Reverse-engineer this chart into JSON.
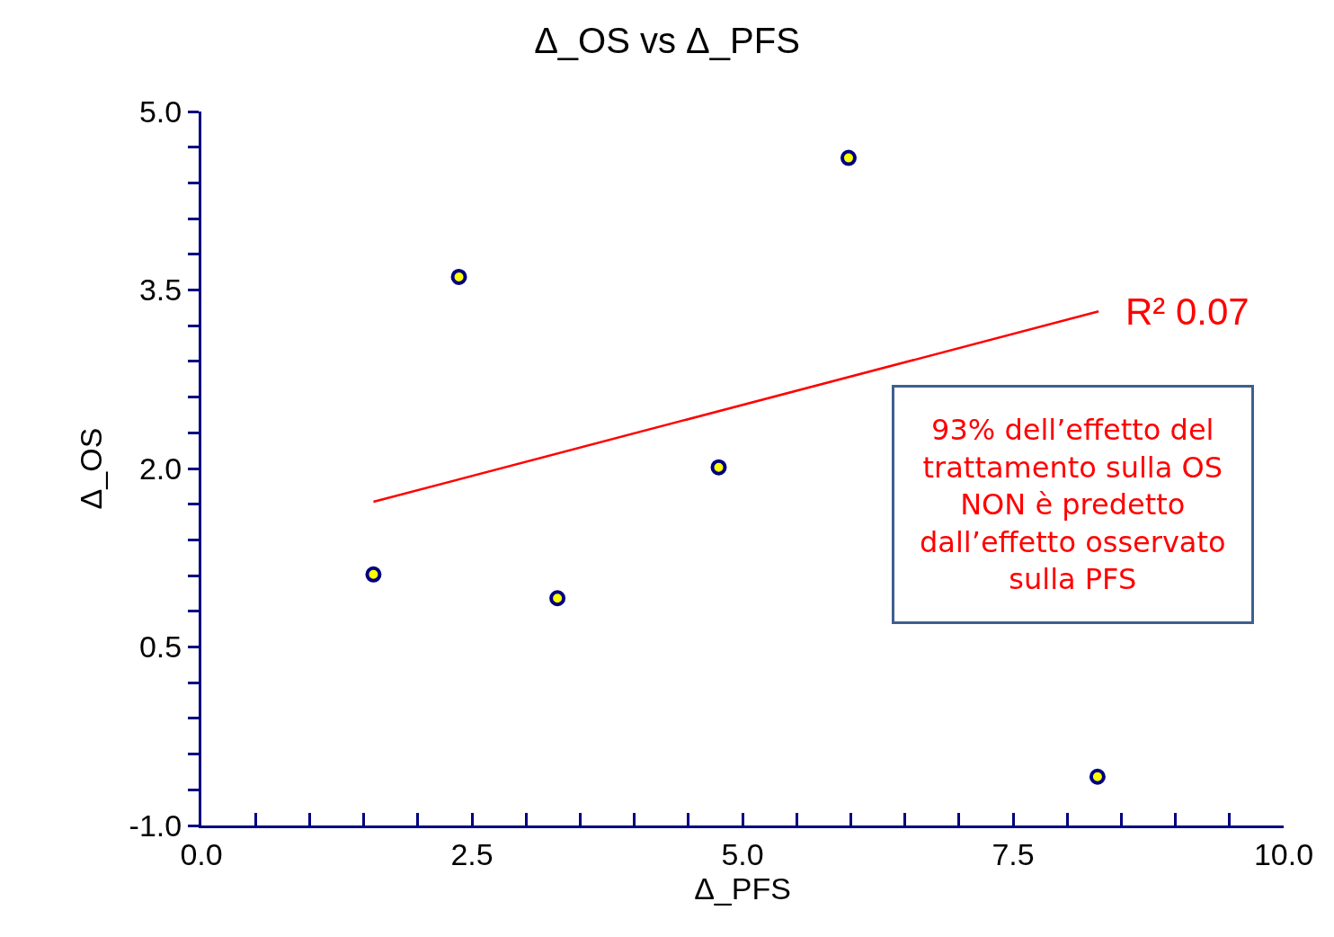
{
  "chart_data": {
    "type": "scatter",
    "title": "Δ_OS vs Δ_PFS",
    "xlabel": "Δ_PFS",
    "ylabel": "Δ_OS",
    "x": [
      1.59,
      2.38,
      3.29,
      4.78,
      5.98,
      8.28
    ],
    "series": [
      {
        "color": "#ffff00",
        "marker": "circle",
        "values": [
          1.11,
          3.61,
          0.91,
          2.01,
          4.61,
          -0.59
        ]
      },
      {
        "type": "line",
        "color": "#ff0000",
        "marker": "none",
        "x": [
          1.59,
          8.29
        ],
        "values": [
          1.72,
          3.32
        ]
      }
    ],
    "grid": false,
    "legend": false,
    "xlim": [
      0,
      10
    ],
    "ylim": [
      -1,
      5
    ],
    "xticks": [
      {
        "value": 0,
        "label": "0.0"
      },
      {
        "value": 0.5,
        "label": null
      },
      {
        "value": 1.0,
        "label": null
      },
      {
        "value": 1.5,
        "label": null
      },
      {
        "value": 2.0,
        "label": null
      },
      {
        "value": 2.5,
        "label": "2.5"
      },
      {
        "value": 3.0,
        "label": null
      },
      {
        "value": 3.5,
        "label": null
      },
      {
        "value": 4.0,
        "label": null
      },
      {
        "value": 4.5,
        "label": null
      },
      {
        "value": 5.0,
        "label": "5.0"
      },
      {
        "value": 5.5,
        "label": null
      },
      {
        "value": 6.0,
        "label": null
      },
      {
        "value": 6.5,
        "label": null
      },
      {
        "value": 7.0,
        "label": null
      },
      {
        "value": 7.5,
        "label": "7.5"
      },
      {
        "value": 8.0,
        "label": null
      },
      {
        "value": 8.5,
        "label": null
      },
      {
        "value": 9.0,
        "label": null
      },
      {
        "value": 9.5,
        "label": null
      },
      {
        "value": 10,
        "label": "10.0"
      }
    ],
    "yticks": [
      {
        "value": -1,
        "label": "-1.0"
      },
      {
        "value": -0.7,
        "label": null
      },
      {
        "value": -0.4,
        "label": null
      },
      {
        "value": -0.1,
        "label": null
      },
      {
        "value": 0.2,
        "label": null
      },
      {
        "value": 0.5,
        "label": "0.5"
      },
      {
        "value": 0.8,
        "label": null
      },
      {
        "value": 1.1,
        "label": null
      },
      {
        "value": 1.4,
        "label": null
      },
      {
        "value": 1.7,
        "label": null
      },
      {
        "value": 2,
        "label": "2.0"
      },
      {
        "value": 2.3,
        "label": null
      },
      {
        "value": 2.6,
        "label": null
      },
      {
        "value": 2.9,
        "label": null
      },
      {
        "value": 3.2,
        "label": null
      },
      {
        "value": 3.5,
        "label": "3.5"
      },
      {
        "value": 3.8,
        "label": null
      },
      {
        "value": 4.1,
        "label": null
      },
      {
        "value": 4.4,
        "label": null
      },
      {
        "value": 4.7,
        "label": null
      },
      {
        "value": 5,
        "label": "5.0"
      }
    ],
    "annotations": [
      {
        "text": "R² 0.07",
        "x": 8.29,
        "y": 3.32
      },
      "93% dell’effetto del\ntrattamento sulla OS\nNON è predetto\ndall’effetto osservato\nsulla PFS"
    ]
  }
}
